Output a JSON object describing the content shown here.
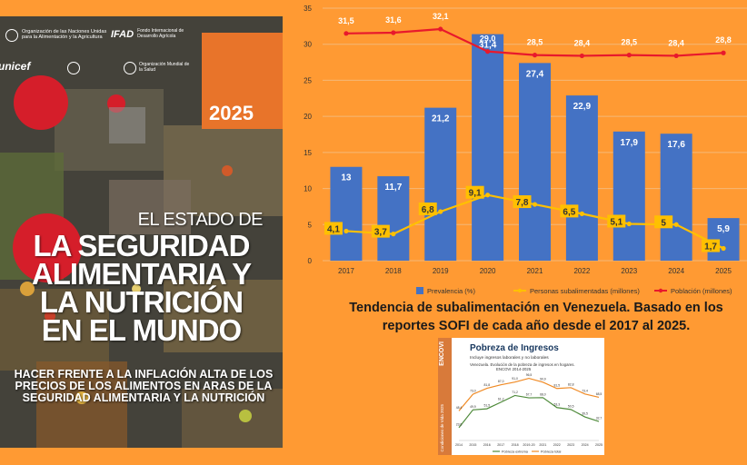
{
  "cover": {
    "org_fao": "Organización de las Naciones Unidas para la Alimentación y la Agricultura",
    "org_fida_logo": "IFAD",
    "org_fida": "Fondo Internacional de Desarrollo Agrícola",
    "org_unicef": "unicef",
    "org_who": "Organización Mundial de la Salud",
    "year": "2025",
    "title_line1": "EL ESTADO DE",
    "title_line2": "LA SEGURIDAD",
    "title_line3": "ALIMENTARIA Y",
    "title_line4": "LA NUTRICIÓN",
    "title_line5": "EN EL MUNDO",
    "subtitle_line1": "HACER FRENTE A LA INFLACIÓN ALTA DE LOS",
    "subtitle_line2": "PRECIOS DE LOS ALIMENTOS EN ARAS DE LA",
    "subtitle_line3": "SEGURIDAD ALIMENTARIA Y LA NUTRICIÓN"
  },
  "caption": {
    "line1": "Tendencia de subalimentación en Venezuela. Basado en los",
    "line2": "reportes SOFI de cada año desde el 2017 al 2025."
  },
  "chart_data": [
    {
      "type": "bar",
      "categories": [
        "2017",
        "2018",
        "2019",
        "2020",
        "2021",
        "2022",
        "2023",
        "2024",
        "2025"
      ],
      "ylim": [
        0,
        35
      ],
      "yticks": [
        0,
        5,
        10,
        15,
        20,
        25,
        30,
        35
      ],
      "grid": true,
      "legend_position": "bottom",
      "series": [
        {
          "name": "Prevalencia (%)",
          "kind": "bar",
          "color": "#4472c4",
          "values": [
            13,
            11.7,
            21.2,
            31.4,
            27.4,
            22.9,
            17.9,
            17.6,
            5.9
          ],
          "labels": [
            "13",
            "11,7",
            "21,2",
            "31,4",
            "27,4",
            "22,9",
            "17,9",
            "17,6",
            "5,9"
          ]
        },
        {
          "name": "Personas subalimentadas (millones)",
          "kind": "line",
          "color": "#ffc000",
          "values": [
            4.1,
            3.7,
            6.8,
            9.1,
            7.8,
            6.5,
            5.1,
            5,
            1.7
          ],
          "labels": [
            "4,1",
            "3,7",
            "6,8",
            "9,1",
            "7,8",
            "6,5",
            "5,1",
            "5",
            "1,7"
          ]
        },
        {
          "name": "Población (millones)",
          "kind": "line",
          "color": "#e8192c",
          "values": [
            31.5,
            31.6,
            32.1,
            29.0,
            28.5,
            28.4,
            28.5,
            28.4,
            28.8
          ],
          "labels": [
            "31,5",
            "31,6",
            "32,1",
            "29,0",
            "28,5",
            "28,4",
            "28,5",
            "28,4",
            "28,8"
          ]
        }
      ]
    },
    {
      "type": "line",
      "title": "Pobreza de Ingresos",
      "subtitle": "Incluye ingresos laborales y no laborales",
      "note_line1": "Venezuela. Evolución de la pobreza de ingresos en hogares.",
      "note_line2": "ENCOVI 2014-2025",
      "brand": "ENCOVI",
      "side_label": "Condiciones de Vida 2025",
      "categories": [
        "2014",
        "2015",
        "2016",
        "2017",
        "2018",
        "2019-20",
        "2021",
        "2022",
        "2023",
        "2024",
        "2025"
      ],
      "series": [
        {
          "name": "Pobreza extrema",
          "color": "#4e8a3a",
          "values": [
            23.6,
            49.9,
            51.5,
            61.2,
            71.2,
            67.7,
            68.0,
            53.3,
            50.5,
            39.5,
            32.7
          ],
          "labels": [
            "23,6",
            "49,9",
            "51,5",
            "61,2",
            "71,2",
            "67,7",
            "68,0",
            "53,3",
            "50,5",
            "39,5",
            "32,7"
          ]
        },
        {
          "name": "Pobreza total",
          "color": "#f08a24",
          "values": [
            48.4,
            73.0,
            81.8,
            87.0,
            91.0,
            96.5,
            90.9,
            81.5,
            82.8,
            73.4,
            68.5
          ],
          "labels": [
            "48,4",
            "73,0",
            "81,8",
            "87,0",
            "91,0",
            "96,5",
            "90,9",
            "81,5",
            "82,8",
            "73,4",
            "68,5"
          ]
        }
      ]
    }
  ]
}
